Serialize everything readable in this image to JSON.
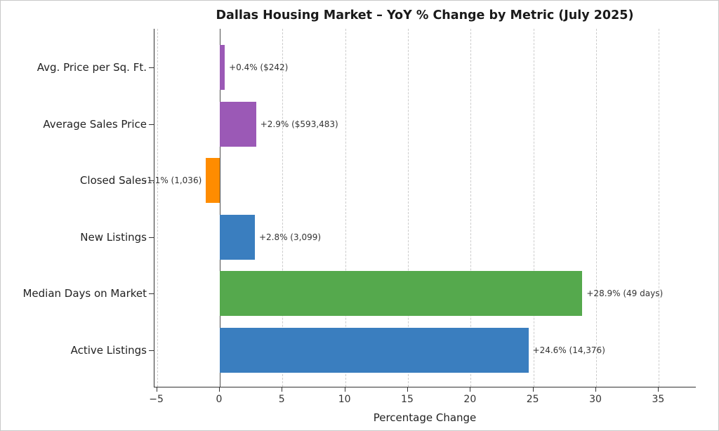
{
  "figure": {
    "background": "#ffffff",
    "border_color": "#c9c9c9"
  },
  "chart_data": {
    "type": "bar",
    "orientation": "horizontal",
    "title": "Dallas Housing Market – YoY % Change by Metric (July 2025)",
    "xlabel": "Percentage Change",
    "ylabel": "",
    "xlim": [
      -5.2,
      38.0
    ],
    "xticks": [
      -5,
      0,
      5,
      10,
      15,
      20,
      25,
      30,
      35
    ],
    "xtick_labels": [
      "−5",
      "0",
      "5",
      "10",
      "15",
      "20",
      "25",
      "30",
      "35"
    ],
    "grid": "vertical-dashed",
    "zero_line": true,
    "legend": "none",
    "categories": [
      "Avg. Price per Sq. Ft.",
      "Average Sales Price",
      "Closed Sales",
      "New Listings",
      "Median Days on Market",
      "Active Listings"
    ],
    "values": [
      0.4,
      2.9,
      -1.1,
      2.8,
      28.9,
      24.6
    ],
    "bar_labels": [
      "+0.4% ($242)",
      "+2.9% ($593,483)",
      "-1.1% (1,036)",
      "+2.8% (3,099)",
      "+28.9% (49 days)",
      "+24.6% (14,376)"
    ],
    "bar_colors": [
      "#9b59b6",
      "#9b59b6",
      "#ff8c00",
      "#3a7ebf",
      "#55a94d",
      "#3a7ebf"
    ],
    "colors": {
      "grid": "#cccccc",
      "axis": "#333333",
      "zero_line": "#4d4d4d",
      "category_text": "#222222",
      "value_text": "#333333",
      "title_text": "#1a1a1a"
    }
  }
}
